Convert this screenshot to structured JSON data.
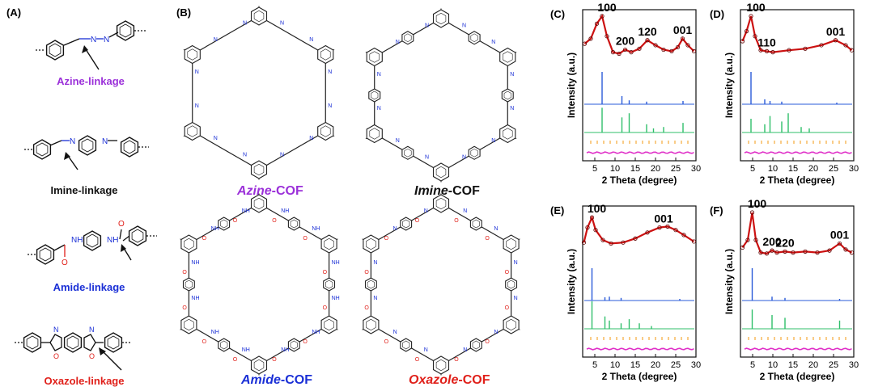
{
  "panels": {
    "A": "(A)",
    "B": "(B)",
    "C": "(C)",
    "D": "(D)",
    "E": "(E)",
    "F": "(F)"
  },
  "linkages": [
    {
      "label": "Azine-linkage",
      "color": "#9b30d9"
    },
    {
      "label": "Imine-linkage",
      "color": "#111111"
    },
    {
      "label": "Amide-linkage",
      "color": "#1a2fd6"
    },
    {
      "label": "Oxazole-linkage",
      "color": "#e0201a"
    }
  ],
  "cofs": [
    {
      "name": "Azine",
      "suffix": "-COF",
      "color": "#9b30d9"
    },
    {
      "name": "Imine",
      "suffix": "-COF",
      "color": "#111111"
    },
    {
      "name": "Amide",
      "suffix": "-COF",
      "color": "#1a2fd6"
    },
    {
      "name": "Oxazole",
      "suffix": "-COF",
      "color": "#e0201a"
    }
  ],
  "atoms": {
    "N": "N",
    "O": "O",
    "NH": "NH",
    "H": "H"
  },
  "xrd_common": {
    "ylabel": "Intensity (a.u.)",
    "xlabel": "2 Theta (degree)",
    "colors": {
      "exp": "#cc1111",
      "blue": "#2a5bd8",
      "green": "#2fbf6a",
      "orange": "#f39a12",
      "pink": "#e030c8"
    }
  },
  "chart_data": [
    {
      "type": "line",
      "panel": "C",
      "xlim": [
        2,
        30
      ],
      "xticks": [
        5,
        10,
        15,
        20,
        25,
        30
      ],
      "xlabel": "2 Theta (degree)",
      "ylabel": "Intensity (a.u.)",
      "peaks": [
        {
          "label": "100",
          "x": 6.8
        },
        {
          "label": "200",
          "x": 12.5
        },
        {
          "label": "120",
          "x": 18
        },
        {
          "label": "001",
          "x": 26.7
        }
      ],
      "series": [
        {
          "name": "experimental",
          "points": [
            [
              2.5,
              0.45
            ],
            [
              4,
              0.55
            ],
            [
              5.5,
              0.85
            ],
            [
              6.8,
              1.0
            ],
            [
              8,
              0.6
            ],
            [
              9.5,
              0.28
            ],
            [
              11,
              0.25
            ],
            [
              12.5,
              0.33
            ],
            [
              14,
              0.28
            ],
            [
              16,
              0.35
            ],
            [
              18,
              0.52
            ],
            [
              20,
              0.42
            ],
            [
              22,
              0.33
            ],
            [
              24,
              0.3
            ],
            [
              25.5,
              0.38
            ],
            [
              26.7,
              0.55
            ],
            [
              28,
              0.42
            ],
            [
              29.5,
              0.3
            ]
          ]
        },
        {
          "name": "blue-simulated",
          "peaks": [
            [
              6.8,
              1.0
            ],
            [
              11.7,
              0.25
            ],
            [
              13.5,
              0.12
            ],
            [
              17.8,
              0.08
            ],
            [
              26.8,
              0.1
            ]
          ]
        },
        {
          "name": "green-simulated",
          "peaks": [
            [
              6.8,
              0.9
            ],
            [
              11.7,
              0.55
            ],
            [
              13.5,
              0.7
            ],
            [
              17.8,
              0.3
            ],
            [
              19.5,
              0.15
            ],
            [
              22,
              0.2
            ],
            [
              26.8,
              0.35
            ]
          ]
        }
      ]
    },
    {
      "type": "line",
      "panel": "D",
      "xlim": [
        2,
        30
      ],
      "xticks": [
        5,
        10,
        15,
        20,
        25,
        30
      ],
      "xlabel": "2 Theta (degree)",
      "ylabel": "Intensity (a.u.)",
      "peaks": [
        {
          "label": "100",
          "x": 4.6
        },
        {
          "label": "110",
          "x": 8.5
        },
        {
          "label": "001",
          "x": 25.5
        }
      ],
      "series": [
        {
          "name": "experimental",
          "points": [
            [
              2.5,
              0.5
            ],
            [
              3.5,
              0.7
            ],
            [
              4.6,
              1.0
            ],
            [
              5.6,
              0.6
            ],
            [
              7,
              0.32
            ],
            [
              8.5,
              0.3
            ],
            [
              10,
              0.28
            ],
            [
              14,
              0.32
            ],
            [
              18,
              0.35
            ],
            [
              22,
              0.42
            ],
            [
              25.5,
              0.52
            ],
            [
              28,
              0.42
            ],
            [
              29.5,
              0.32
            ]
          ]
        },
        {
          "name": "blue-simulated",
          "peaks": [
            [
              4.6,
              1.0
            ],
            [
              8,
              0.15
            ],
            [
              9.3,
              0.1
            ],
            [
              12.2,
              0.08
            ],
            [
              25.8,
              0.05
            ]
          ]
        },
        {
          "name": "green-simulated",
          "peaks": [
            [
              4.6,
              0.5
            ],
            [
              8,
              0.3
            ],
            [
              9.3,
              0.6
            ],
            [
              12.2,
              0.4
            ],
            [
              13.8,
              0.7
            ],
            [
              17,
              0.2
            ],
            [
              19,
              0.15
            ]
          ]
        }
      ]
    },
    {
      "type": "line",
      "panel": "E",
      "xlim": [
        2,
        30
      ],
      "xticks": [
        5,
        10,
        15,
        20,
        25,
        30
      ],
      "xlabel": "2 Theta (degree)",
      "ylabel": "Intensity (a.u.)",
      "peaks": [
        {
          "label": "100",
          "x": 4.3
        },
        {
          "label": "001",
          "x": 22
        }
      ],
      "series": [
        {
          "name": "experimental",
          "points": [
            [
              2.3,
              0.4
            ],
            [
              3.2,
              0.7
            ],
            [
              4.3,
              0.9
            ],
            [
              5.2,
              0.65
            ],
            [
              7,
              0.45
            ],
            [
              9,
              0.38
            ],
            [
              12,
              0.4
            ],
            [
              15,
              0.48
            ],
            [
              18,
              0.6
            ],
            [
              21,
              0.7
            ],
            [
              23,
              0.72
            ],
            [
              25,
              0.65
            ],
            [
              27,
              0.55
            ],
            [
              29.5,
              0.42
            ]
          ]
        },
        {
          "name": "blue-simulated",
          "peaks": [
            [
              4.3,
              1.0
            ],
            [
              7.5,
              0.1
            ],
            [
              8.6,
              0.12
            ],
            [
              11.5,
              0.08
            ],
            [
              26,
              0.05
            ]
          ]
        },
        {
          "name": "green-simulated",
          "peaks": [
            [
              4.3,
              1.0
            ],
            [
              7.5,
              0.45
            ],
            [
              8.6,
              0.3
            ],
            [
              11.5,
              0.2
            ],
            [
              13.5,
              0.35
            ],
            [
              16,
              0.2
            ],
            [
              19,
              0.1
            ]
          ]
        }
      ]
    },
    {
      "type": "line",
      "panel": "F",
      "xlim": [
        2,
        30
      ],
      "xticks": [
        5,
        10,
        15,
        20,
        25,
        30
      ],
      "xlabel": "2 Theta (degree)",
      "ylabel": "Intensity (a.u.)",
      "peaks": [
        {
          "label": "100",
          "x": 4.9
        },
        {
          "label": "200",
          "x": 9.8
        },
        {
          "label": "220",
          "x": 13
        },
        {
          "label": "001",
          "x": 26.5
        }
      ],
      "series": [
        {
          "name": "experimental",
          "points": [
            [
              2.5,
              0.3
            ],
            [
              3.8,
              0.45
            ],
            [
              4.9,
              1.0
            ],
            [
              5.8,
              0.45
            ],
            [
              7,
              0.2
            ],
            [
              8.5,
              0.18
            ],
            [
              9.8,
              0.24
            ],
            [
              11,
              0.2
            ],
            [
              13,
              0.22
            ],
            [
              15,
              0.2
            ],
            [
              18,
              0.22
            ],
            [
              21,
              0.2
            ],
            [
              24,
              0.24
            ],
            [
              26.5,
              0.38
            ],
            [
              28,
              0.26
            ],
            [
              29.5,
              0.2
            ]
          ]
        },
        {
          "name": "blue-simulated",
          "peaks": [
            [
              4.9,
              1.0
            ],
            [
              9.8,
              0.12
            ],
            [
              13,
              0.08
            ],
            [
              26.5,
              0.05
            ]
          ]
        },
        {
          "name": "green-simulated",
          "peaks": [
            [
              4.9,
              0.7
            ],
            [
              9.8,
              0.5
            ],
            [
              13,
              0.4
            ],
            [
              26.5,
              0.3
            ]
          ]
        }
      ]
    }
  ]
}
